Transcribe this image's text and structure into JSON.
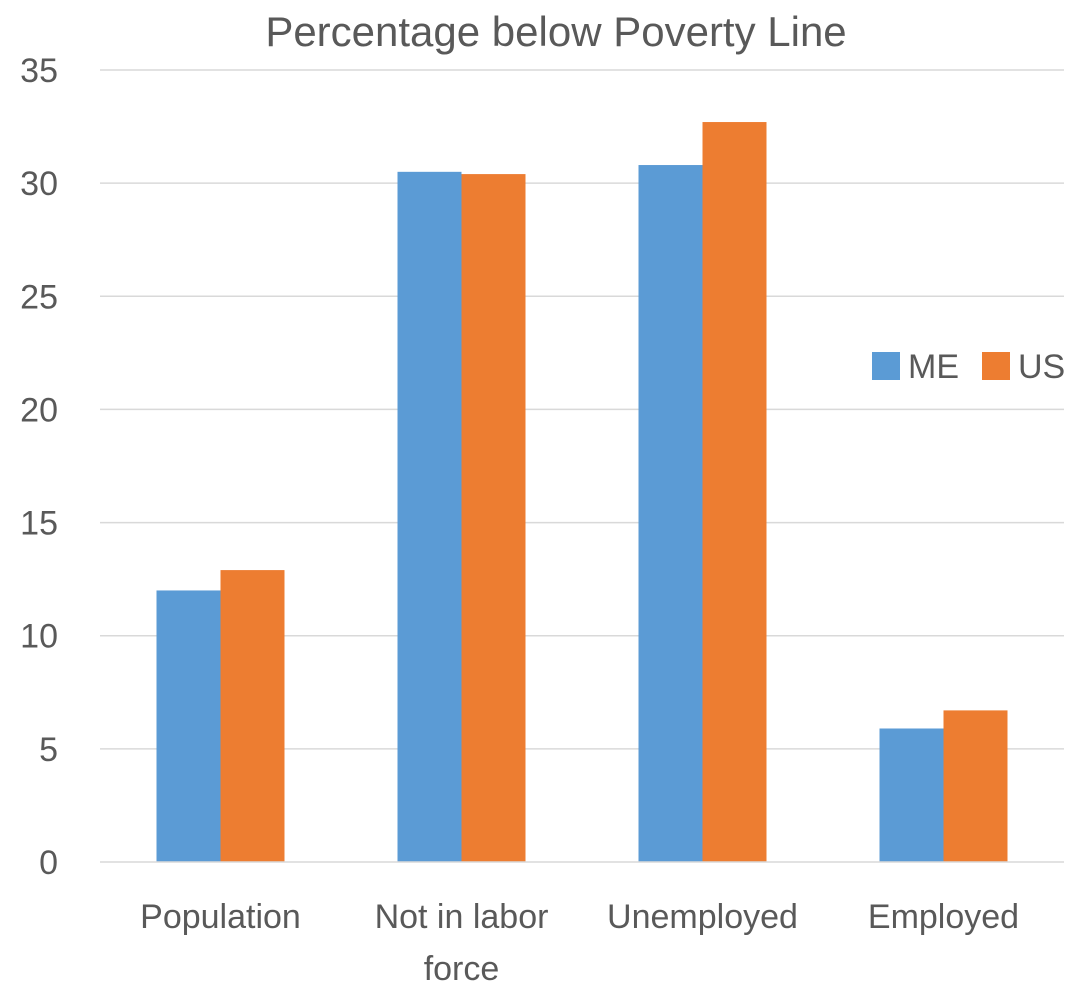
{
  "chart_data": {
    "type": "bar",
    "title": "Percentage below Poverty Line",
    "categories": [
      [
        "Population"
      ],
      [
        "Not in labor",
        "force"
      ],
      [
        "Unemployed"
      ],
      [
        "Employed"
      ]
    ],
    "series": [
      {
        "name": "ME",
        "color": "#5b9bd5",
        "values": [
          12.0,
          30.5,
          30.8,
          5.9
        ]
      },
      {
        "name": "US",
        "color": "#ed7d31",
        "values": [
          12.9,
          30.4,
          32.7,
          6.7
        ]
      }
    ],
    "y_ticks": [
      "0",
      "5",
      "10",
      "15",
      "20",
      "25",
      "30",
      "35"
    ],
    "ylim": [
      0,
      35
    ],
    "grid": true,
    "legend_position": "right"
  }
}
